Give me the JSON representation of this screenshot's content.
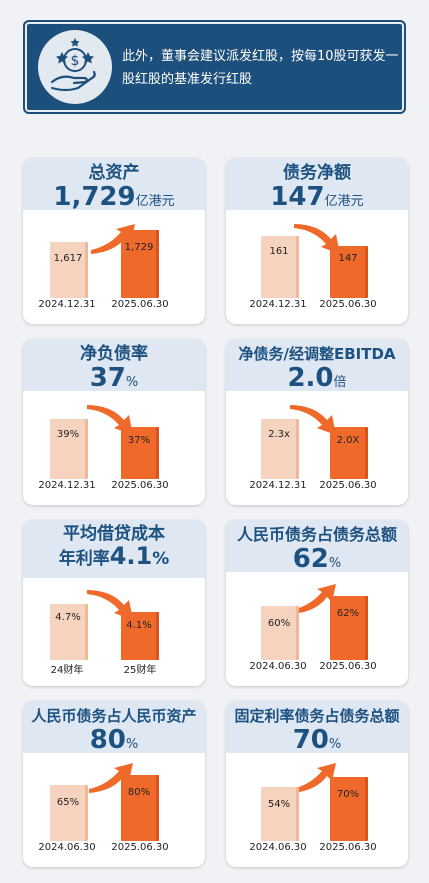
{
  "banner": {
    "text_line1": "此外，董事会建议派发红股，按每10股可获发一",
    "text_line2": "股红股的基准发行红股",
    "icon": "hand-coin-stars-icon"
  },
  "cards": [
    {
      "title": "总资产",
      "value": "1,729",
      "unit": "亿港元",
      "left_label": "1,617",
      "right_label": "1,729",
      "left_x": "2024.12.31",
      "right_x": "2025.06.30",
      "arrow": "up"
    },
    {
      "title": "债务净额",
      "value": "147",
      "unit": "亿港元",
      "left_label": "161",
      "right_label": "147",
      "left_x": "2024.12.31",
      "right_x": "2025.06.30",
      "arrow": "down"
    },
    {
      "title": "净负债率",
      "value": "37",
      "unit": "%",
      "left_label": "39%",
      "right_label": "37%",
      "left_x": "2024.12.31",
      "right_x": "2025.06.30",
      "arrow": "down"
    },
    {
      "title": "净债务/经调整EBITDA",
      "value": "2.0",
      "unit": "倍",
      "left_label": "2.3x",
      "right_label": "2.0X",
      "left_x": "2024.12.31",
      "right_x": "2025.06.30",
      "arrow": "down"
    },
    {
      "title": "平均借贷成本",
      "value_prefix": "年利率",
      "value": "4.1",
      "unit": "%",
      "left_label": "4.7%",
      "right_label": "4.1%",
      "left_x": "24财年",
      "right_x": "25财年",
      "arrow": "down"
    },
    {
      "title": "人民币债务占债务总额",
      "value": "62",
      "unit": "%",
      "left_label": "60%",
      "right_label": "62%",
      "left_x": "2024.06.30",
      "right_x": "2025.06.30",
      "arrow": "up"
    },
    {
      "title": "人民币债务占人民币资产",
      "value": "80",
      "unit": "%",
      "left_label": "65%",
      "right_label": "80%",
      "left_x": "2024.06.30",
      "right_x": "2025.06.30",
      "arrow": "up"
    },
    {
      "title": "固定利率债务占债务总额",
      "value": "70",
      "unit": "%",
      "left_label": "54%",
      "right_label": "70%",
      "left_x": "2024.06.30",
      "right_x": "2025.06.30",
      "arrow": "up"
    }
  ],
  "colors": {
    "navy": "#1d4f7c",
    "title_blue": "#1d5280",
    "header_bg": "#dfe7f2",
    "bar_light": "#f6d3bf",
    "bar_dark": "#ef6a2a"
  }
}
